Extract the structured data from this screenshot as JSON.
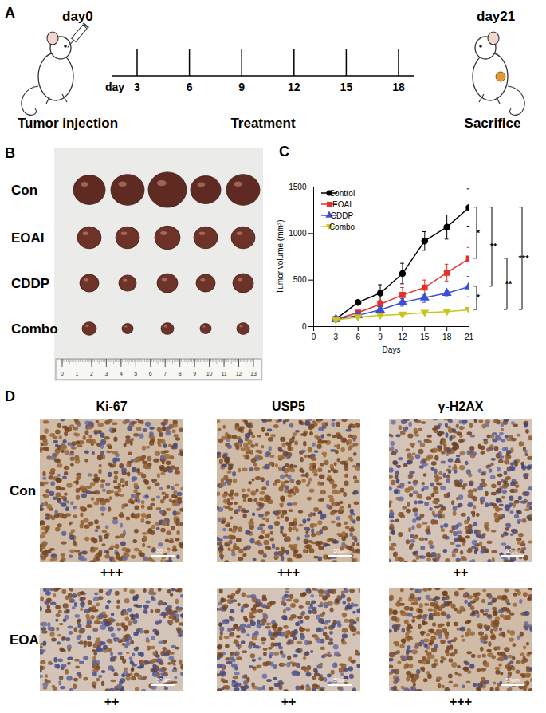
{
  "panel_a": {
    "panel_label": "A",
    "start_label": "day0",
    "end_label": "day21",
    "axis_word": "day",
    "day_ticks": [
      3,
      6,
      9,
      12,
      15,
      18
    ],
    "phases": [
      "Tumor injection",
      "Treatment",
      "Sacrifice"
    ]
  },
  "panel_b": {
    "panel_label": "B",
    "rows": [
      "Con",
      "EOAI",
      "CDDP",
      "Combo"
    ],
    "ruler_labels": [
      0,
      1,
      2,
      3,
      4,
      5,
      6,
      7,
      8,
      9,
      10,
      11,
      12,
      13
    ]
  },
  "chart_data": {
    "type": "line",
    "panel_label": "C",
    "x_label": "Days",
    "y_label": "Tumor volume (mm³)",
    "x": [
      3,
      6,
      9,
      12,
      15,
      18,
      21
    ],
    "series": [
      {
        "name": "Control",
        "color": "#000000",
        "marker": "circle",
        "values": [
          80,
          260,
          360,
          570,
          920,
          1070,
          1280
        ],
        "errors": [
          20,
          20,
          90,
          110,
          100,
          130,
          200
        ]
      },
      {
        "name": "EOAI",
        "color": "#e8302a",
        "marker": "square",
        "values": [
          80,
          150,
          240,
          340,
          420,
          580,
          730
        ],
        "errors": [
          10,
          20,
          40,
          80,
          80,
          90,
          120
        ]
      },
      {
        "name": "CDDP",
        "color": "#3b4fd8",
        "marker": "triangle",
        "values": [
          80,
          120,
          180,
          260,
          310,
          360,
          430
        ],
        "errors": [
          10,
          15,
          30,
          40,
          50,
          30,
          110
        ]
      },
      {
        "name": "Combo",
        "color": "#c9c51b",
        "marker": "triangle-down",
        "values": [
          70,
          100,
          120,
          130,
          150,
          160,
          180
        ],
        "errors": [
          5,
          10,
          10,
          10,
          10,
          10,
          15
        ]
      }
    ],
    "significance": [
      {
        "groups": [
          "Control",
          "EOAI"
        ],
        "label": "*"
      },
      {
        "groups": [
          "CDDP",
          "Combo"
        ],
        "label": "*"
      },
      {
        "groups": [
          "Control",
          "CDDP"
        ],
        "label": "**"
      },
      {
        "groups": [
          "EOAI",
          "Combo"
        ],
        "label": "**"
      },
      {
        "groups": [
          "Control",
          "Combo"
        ],
        "label": "***"
      }
    ],
    "xlim": [
      0,
      21
    ],
    "xticks": [
      0,
      3,
      6,
      9,
      12,
      15,
      18,
      21
    ],
    "ylim": [
      0,
      1500
    ],
    "yticks": [
      0,
      500,
      1000,
      1500
    ],
    "legend": "top-left",
    "grid": false
  },
  "panel_d": {
    "panel_label": "D",
    "columns": [
      "Ki-67",
      "USP5",
      "γ-H2AX"
    ],
    "rows": [
      {
        "name": "Con",
        "scores": [
          "+++",
          "+++",
          "++"
        ]
      },
      {
        "name": "EOAI",
        "scores": [
          "++",
          "++",
          "+++"
        ]
      }
    ],
    "scale_bar": "50μm"
  }
}
